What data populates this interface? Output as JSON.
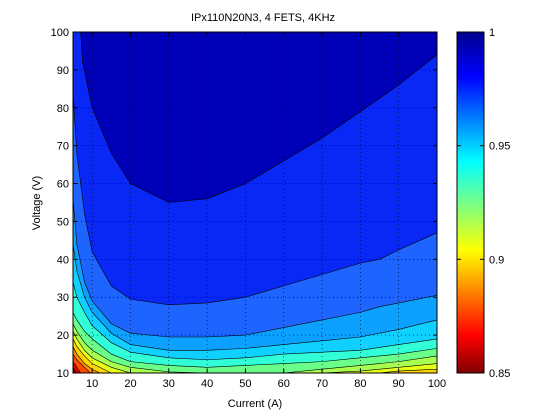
{
  "chart_data": {
    "type": "contour",
    "title": "IPx110N20N3, 4 FETS, 4KHz",
    "xlabel": "Current (A)",
    "ylabel": "Voltage (V)",
    "xlim": [
      5,
      100
    ],
    "ylim": [
      10,
      100
    ],
    "xticks": [
      "10",
      "20",
      "30",
      "40",
      "50",
      "60",
      "70",
      "80",
      "90",
      "100"
    ],
    "yticks": [
      "10",
      "20",
      "30",
      "40",
      "50",
      "60",
      "70",
      "80",
      "90",
      "100"
    ],
    "grid": true,
    "colorbar": {
      "range": [
        0.85,
        1
      ],
      "ticks": [
        "0.85",
        "0.9",
        "0.95",
        "1"
      ],
      "colormap": "jet"
    },
    "levels": [
      {
        "level": 0.99,
        "color": "#0000b8",
        "points": [
          [
            7,
            100
          ],
          [
            7.5,
            92
          ],
          [
            10,
            80
          ],
          [
            15,
            68
          ],
          [
            20,
            60
          ],
          [
            30,
            55
          ],
          [
            40,
            56
          ],
          [
            50,
            60
          ],
          [
            60,
            66
          ],
          [
            70,
            72
          ],
          [
            80,
            79
          ],
          [
            90,
            86
          ],
          [
            100,
            94
          ],
          [
            100,
            100
          ]
        ]
      },
      {
        "level": 0.98,
        "color": "#0a28f5",
        "points": [
          [
            5,
            84
          ],
          [
            6,
            68
          ],
          [
            8,
            52
          ],
          [
            10,
            42
          ],
          [
            15,
            33
          ],
          [
            20,
            29.5
          ],
          [
            30,
            28
          ],
          [
            40,
            28.5
          ],
          [
            50,
            30
          ],
          [
            60,
            33
          ],
          [
            70,
            36
          ],
          [
            80,
            39
          ],
          [
            85,
            40
          ],
          [
            90,
            42.5
          ],
          [
            100,
            47
          ],
          [
            100,
            100
          ]
        ]
      },
      {
        "level": 0.97,
        "color": "#1e64ff",
        "points": [
          [
            5,
            56
          ],
          [
            6,
            44
          ],
          [
            8,
            34
          ],
          [
            10,
            29
          ],
          [
            15,
            23
          ],
          [
            20,
            20.5
          ],
          [
            30,
            19.5
          ],
          [
            40,
            19.5
          ],
          [
            50,
            20
          ],
          [
            60,
            22
          ],
          [
            70,
            24
          ],
          [
            80,
            26
          ],
          [
            85,
            27.5
          ],
          [
            90,
            28.5
          ],
          [
            100,
            30.5
          ],
          [
            100,
            100
          ]
        ]
      },
      {
        "level": 0.96,
        "color": "#0ca0ff",
        "points": [
          [
            5,
            44
          ],
          [
            6,
            37
          ],
          [
            8,
            30
          ],
          [
            10,
            26
          ],
          [
            15,
            20.5
          ],
          [
            20,
            17.5
          ],
          [
            30,
            16
          ],
          [
            40,
            16
          ],
          [
            50,
            16.5
          ],
          [
            60,
            17.5
          ],
          [
            70,
            18.5
          ],
          [
            80,
            19.5
          ],
          [
            90,
            21.5
          ],
          [
            100,
            24
          ],
          [
            100,
            100
          ]
        ]
      },
      {
        "level": 0.955,
        "color": "#10d0ff",
        "points": [
          [
            5,
            34
          ],
          [
            6,
            30
          ],
          [
            8,
            26
          ],
          [
            10,
            22.5
          ],
          [
            15,
            18
          ],
          [
            20,
            15.5
          ],
          [
            30,
            14
          ],
          [
            40,
            13.5
          ],
          [
            50,
            14
          ],
          [
            60,
            15
          ],
          [
            70,
            15.5
          ],
          [
            80,
            16
          ],
          [
            90,
            17.5
          ],
          [
            100,
            19
          ],
          [
            100,
            100
          ]
        ]
      },
      {
        "level": 0.95,
        "color": "#30ffd8",
        "points": [
          [
            5,
            26
          ],
          [
            6,
            24
          ],
          [
            8,
            21
          ],
          [
            10,
            19
          ],
          [
            15,
            15
          ],
          [
            20,
            13
          ],
          [
            30,
            12
          ],
          [
            40,
            11.5
          ],
          [
            50,
            12
          ],
          [
            60,
            12.5
          ],
          [
            70,
            13
          ],
          [
            80,
            14
          ],
          [
            90,
            15
          ],
          [
            100,
            16.5
          ],
          [
            100,
            100
          ]
        ]
      },
      {
        "level": 0.945,
        "color": "#6aff8a",
        "points": [
          [
            5,
            23
          ],
          [
            6,
            21
          ],
          [
            8,
            18
          ],
          [
            10,
            16
          ],
          [
            15,
            13
          ],
          [
            20,
            11.5
          ],
          [
            30,
            10.3
          ],
          [
            40,
            10
          ],
          [
            60,
            10
          ],
          [
            70,
            11
          ],
          [
            80,
            12
          ],
          [
            90,
            13
          ],
          [
            100,
            14.5
          ],
          [
            100,
            100
          ]
        ]
      },
      {
        "level": 0.94,
        "color": "#a8ff50",
        "points": [
          [
            5,
            21
          ],
          [
            6,
            19
          ],
          [
            8,
            16
          ],
          [
            10,
            14
          ],
          [
            15,
            11.5
          ],
          [
            20,
            10
          ],
          [
            70,
            10
          ],
          [
            80,
            10.5
          ],
          [
            90,
            11.5
          ],
          [
            100,
            12.5
          ],
          [
            100,
            100
          ]
        ]
      },
      {
        "level": 0.93,
        "color": "#e6ff18",
        "points": [
          [
            5,
            19
          ],
          [
            6,
            17
          ],
          [
            8,
            14.5
          ],
          [
            10,
            12.5
          ],
          [
            15,
            10
          ],
          [
            85,
            10
          ],
          [
            90,
            10.5
          ],
          [
            100,
            11
          ],
          [
            100,
            100
          ]
        ]
      },
      {
        "level": 0.92,
        "color": "#ffd400",
        "points": [
          [
            5,
            17
          ],
          [
            6,
            15
          ],
          [
            8,
            12.5
          ],
          [
            10,
            11
          ],
          [
            12,
            10
          ],
          [
            100,
            10
          ],
          [
            100,
            100
          ]
        ]
      },
      {
        "level": 0.91,
        "color": "#ff9000",
        "points": [
          [
            5,
            15
          ],
          [
            6,
            13.5
          ],
          [
            8,
            11.5
          ],
          [
            9.5,
            10
          ],
          [
            100,
            10
          ],
          [
            100,
            100
          ]
        ]
      },
      {
        "level": 0.9,
        "color": "#ff4800",
        "points": [
          [
            5,
            13
          ],
          [
            6,
            11.5
          ],
          [
            7,
            10
          ],
          [
            100,
            10
          ],
          [
            100,
            100
          ]
        ]
      },
      {
        "level": 0.88,
        "color": "#e00000",
        "points": [
          [
            5,
            11.5
          ],
          [
            5.8,
            10
          ],
          [
            100,
            10
          ],
          [
            100,
            100
          ]
        ]
      }
    ]
  }
}
